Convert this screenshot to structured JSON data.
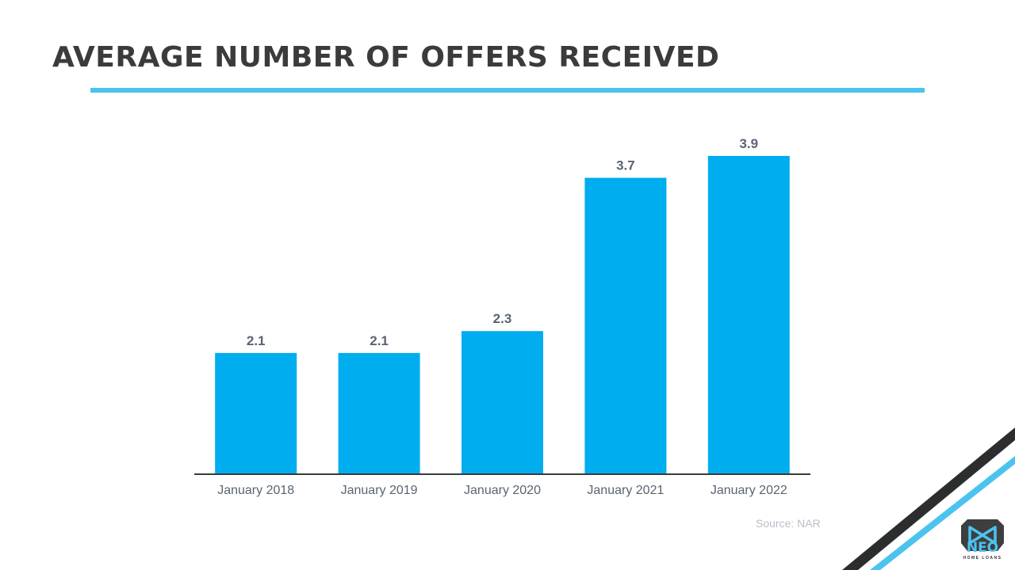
{
  "title": "AVERAGE NUMBER OF OFFERS RECEIVED",
  "source": "Source: NAR",
  "logo": {
    "name": "NEO",
    "subtitle": "HOME LOANS"
  },
  "colors": {
    "bar": "#00adef",
    "accent": "#4cc3ef",
    "title": "#3b3b3d",
    "label": "#5a6473",
    "stripe_dark": "#2b2d2e"
  },
  "chart_data": {
    "type": "bar",
    "title": "",
    "xlabel": "",
    "ylabel": "",
    "categories": [
      "January 2018",
      "January 2019",
      "January 2020",
      "January 2021",
      "January 2022"
    ],
    "values": [
      2.1,
      2.1,
      2.3,
      3.7,
      3.9
    ],
    "data_labels": [
      "2.1",
      "2.1",
      "2.3",
      "3.7",
      "3.9"
    ],
    "ylim": [
      1.0,
      4.2
    ],
    "grid": false,
    "legend": "none"
  }
}
